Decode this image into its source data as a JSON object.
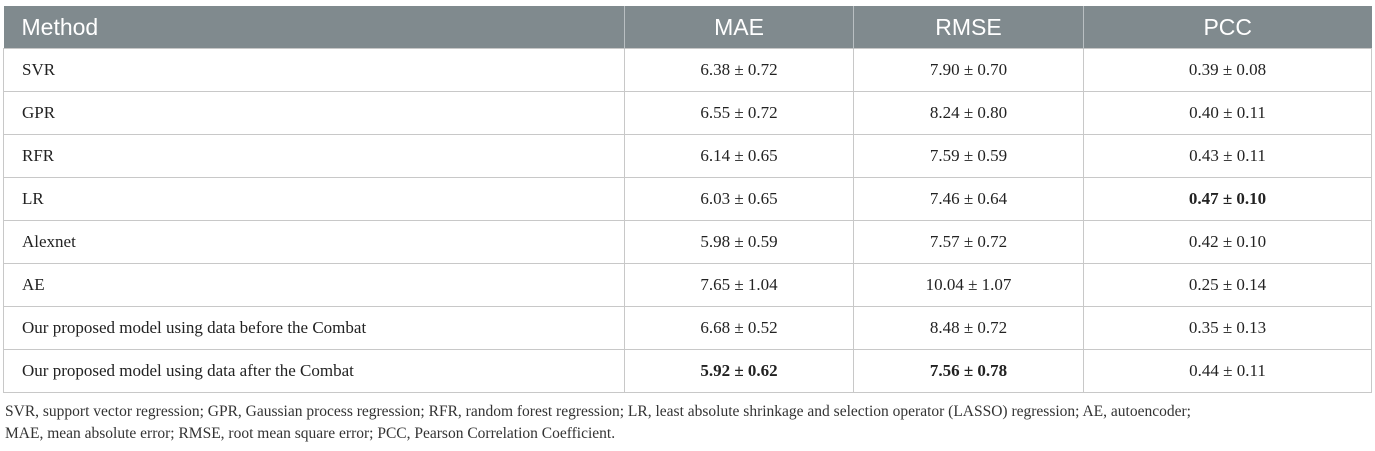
{
  "table": {
    "headers": [
      "Method",
      "MAE",
      "RMSE",
      "PCC"
    ],
    "rows": [
      {
        "method": "SVR",
        "mae": "6.38 ± 0.72",
        "rmse": "7.90 ± 0.70",
        "pcc": "0.39 ± 0.08"
      },
      {
        "method": "GPR",
        "mae": "6.55 ± 0.72",
        "rmse": "8.24 ± 0.80",
        "pcc": "0.40 ± 0.11"
      },
      {
        "method": "RFR",
        "mae": "6.14 ± 0.65",
        "rmse": "7.59 ± 0.59",
        "pcc": "0.43 ± 0.11"
      },
      {
        "method": "LR",
        "mae": "6.03 ± 0.65",
        "rmse": "7.46 ± 0.64",
        "pcc": "0.47 ± 0.10"
      },
      {
        "method": "Alexnet",
        "mae": "5.98 ± 0.59",
        "rmse": "7.57 ± 0.72",
        "pcc": "0.42 ± 0.10"
      },
      {
        "method": "AE",
        "mae": "7.65 ± 1.04",
        "rmse": "10.04 ± 1.07",
        "pcc": "0.25 ± 0.14"
      },
      {
        "method": "Our proposed model using data before the Combat",
        "mae": "6.68 ± 0.52",
        "rmse": "8.48 ± 0.72",
        "pcc": "0.35 ± 0.13"
      },
      {
        "method": "Our proposed model using data after the Combat",
        "mae": "5.92 ± 0.62",
        "rmse": "7.56 ± 0.78",
        "pcc": "0.44 ± 0.11"
      }
    ]
  },
  "footnote": {
    "line1": "SVR, support vector regression; GPR, Gaussian process regression; RFR, random forest regression; LR, least absolute shrinkage and selection operator (LASSO) regression; AE, autoencoder;",
    "line2": "MAE, mean absolute error; RMSE, root mean square error; PCC, Pearson Correlation Coefficient."
  }
}
